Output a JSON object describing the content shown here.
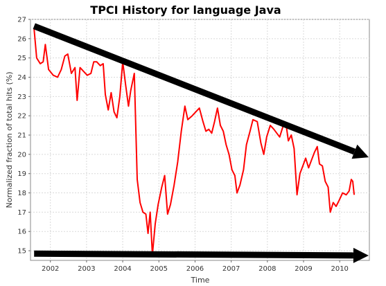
{
  "chart_data": {
    "type": "line",
    "title": "TPCI History for language Java",
    "xlabel": "Time",
    "ylabel": "Normalized fraction of total hits (%)",
    "xlim": [
      2001.45,
      2010.82
    ],
    "ylim": [
      14.5,
      27.0
    ],
    "x_ticks": [
      "2002",
      "2003",
      "2004",
      "2005",
      "2006",
      "2007",
      "2008",
      "2009",
      "2010"
    ],
    "y_ticks": [
      "15",
      "16",
      "17",
      "18",
      "19",
      "20",
      "21",
      "22",
      "23",
      "24",
      "25",
      "26",
      "27"
    ],
    "grid": true,
    "series": [
      {
        "color": "#ff0000",
        "points": [
          [
            2001.55,
            26.5
          ],
          [
            2001.62,
            25.0
          ],
          [
            2001.72,
            24.7
          ],
          [
            2001.8,
            24.8
          ],
          [
            2001.86,
            25.7
          ],
          [
            2001.95,
            24.4
          ],
          [
            2002.08,
            24.1
          ],
          [
            2002.2,
            24.0
          ],
          [
            2002.3,
            24.4
          ],
          [
            2002.4,
            25.1
          ],
          [
            2002.48,
            25.2
          ],
          [
            2002.58,
            24.2
          ],
          [
            2002.68,
            24.5
          ],
          [
            2002.74,
            22.8
          ],
          [
            2002.82,
            24.5
          ],
          [
            2002.92,
            24.3
          ],
          [
            2003.02,
            24.1
          ],
          [
            2003.12,
            24.2
          ],
          [
            2003.2,
            24.8
          ],
          [
            2003.28,
            24.8
          ],
          [
            2003.38,
            24.6
          ],
          [
            2003.46,
            24.7
          ],
          [
            2003.52,
            23.1
          ],
          [
            2003.6,
            22.3
          ],
          [
            2003.68,
            23.2
          ],
          [
            2003.76,
            22.2
          ],
          [
            2003.84,
            21.9
          ],
          [
            2003.92,
            23.0
          ],
          [
            2004.0,
            24.8
          ],
          [
            2004.08,
            23.6
          ],
          [
            2004.16,
            22.5
          ],
          [
            2004.22,
            23.3
          ],
          [
            2004.32,
            24.2
          ],
          [
            2004.4,
            18.7
          ],
          [
            2004.48,
            17.5
          ],
          [
            2004.56,
            17.0
          ],
          [
            2004.64,
            16.9
          ],
          [
            2004.7,
            15.9
          ],
          [
            2004.76,
            17.0
          ],
          [
            2004.82,
            14.8
          ],
          [
            2004.9,
            16.4
          ],
          [
            2004.98,
            17.4
          ],
          [
            2005.08,
            18.3
          ],
          [
            2005.16,
            18.9
          ],
          [
            2005.24,
            16.9
          ],
          [
            2005.32,
            17.4
          ],
          [
            2005.42,
            18.4
          ],
          [
            2005.52,
            19.6
          ],
          [
            2005.62,
            21.2
          ],
          [
            2005.72,
            22.5
          ],
          [
            2005.8,
            21.8
          ],
          [
            2005.92,
            22.0
          ],
          [
            2006.02,
            22.2
          ],
          [
            2006.12,
            22.4
          ],
          [
            2006.22,
            21.7
          ],
          [
            2006.3,
            21.2
          ],
          [
            2006.38,
            21.3
          ],
          [
            2006.46,
            21.1
          ],
          [
            2006.54,
            21.7
          ],
          [
            2006.62,
            22.4
          ],
          [
            2006.7,
            21.5
          ],
          [
            2006.78,
            21.2
          ],
          [
            2006.86,
            20.5
          ],
          [
            2006.94,
            20.0
          ],
          [
            2007.02,
            19.2
          ],
          [
            2007.1,
            18.9
          ],
          [
            2007.16,
            18.0
          ],
          [
            2007.24,
            18.4
          ],
          [
            2007.34,
            19.2
          ],
          [
            2007.42,
            20.5
          ],
          [
            2007.52,
            21.2
          ],
          [
            2007.6,
            21.8
          ],
          [
            2007.72,
            21.7
          ],
          [
            2007.82,
            20.6
          ],
          [
            2007.9,
            20.0
          ],
          [
            2007.98,
            20.9
          ],
          [
            2008.08,
            21.5
          ],
          [
            2008.18,
            21.3
          ],
          [
            2008.26,
            21.1
          ],
          [
            2008.34,
            20.9
          ],
          [
            2008.44,
            21.5
          ],
          [
            2008.52,
            21.5
          ],
          [
            2008.58,
            20.7
          ],
          [
            2008.66,
            21.0
          ],
          [
            2008.74,
            20.3
          ],
          [
            2008.82,
            17.9
          ],
          [
            2008.9,
            19.0
          ],
          [
            2008.98,
            19.4
          ],
          [
            2009.06,
            19.8
          ],
          [
            2009.14,
            19.3
          ],
          [
            2009.22,
            19.7
          ],
          [
            2009.3,
            20.1
          ],
          [
            2009.38,
            20.4
          ],
          [
            2009.44,
            19.5
          ],
          [
            2009.52,
            19.4
          ],
          [
            2009.6,
            18.6
          ],
          [
            2009.68,
            18.3
          ],
          [
            2009.74,
            17.0
          ],
          [
            2009.82,
            17.5
          ],
          [
            2009.9,
            17.3
          ],
          [
            2009.98,
            17.6
          ],
          [
            2010.08,
            18.0
          ],
          [
            2010.18,
            17.9
          ],
          [
            2010.26,
            18.1
          ],
          [
            2010.32,
            18.7
          ],
          [
            2010.36,
            18.6
          ],
          [
            2010.4,
            17.9
          ]
        ]
      }
    ],
    "annotations": [
      {
        "type": "arrow",
        "color": "#000000",
        "from": [
          2001.55,
          26.65
        ],
        "to": [
          2010.8,
          19.85
        ]
      },
      {
        "type": "arrow",
        "color": "#000000",
        "from": [
          2001.55,
          14.85
        ],
        "to": [
          2010.8,
          14.75
        ]
      }
    ]
  }
}
